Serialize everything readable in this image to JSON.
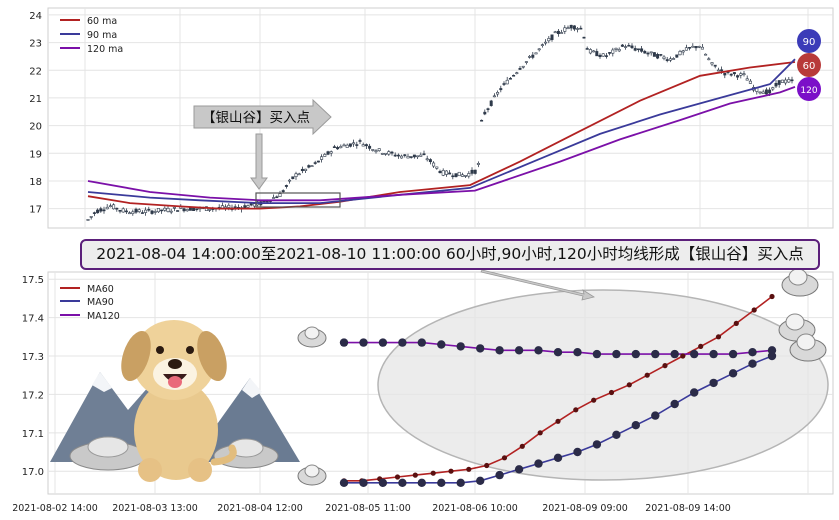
{
  "colors": {
    "ma60": "#b22222",
    "ma90": "#3a3a9a",
    "ma120": "#7b10a8",
    "candle": "#2f3a4a",
    "grid": "#e4e4e4",
    "banner_border": "#5b1f7a",
    "callout_fill": "#c8c8c8"
  },
  "top_panel": {
    "y_ticks": [
      "24",
      "23",
      "22",
      "21",
      "20",
      "19",
      "18",
      "17"
    ],
    "legend": [
      "60 ma",
      "90 ma",
      "120 ma"
    ],
    "end_badges": [
      "90",
      "60",
      "120"
    ],
    "callout": "【银山谷】买入点",
    "price_hint": {
      "min": 16.5,
      "max": 23.7,
      "last": 21.6
    }
  },
  "banner_text": "2021-08-04 14:00:00至2021-08-10 11:00:00 60小时,90小时,120小时均线形成【银山谷】买入点",
  "chart_data": {
    "type": "line",
    "title": "",
    "xlabel": "",
    "ylabel": "",
    "x_ticks": [
      "2021-08-02 14:00",
      "2021-08-03 13:00",
      "2021-08-04 12:00",
      "2021-08-05 11:00",
      "2021-08-06 10:00",
      "2021-08-09 09:00",
      "2021-08-09 14:00"
    ],
    "y_ticks": [
      "17.5",
      "17.4",
      "17.3",
      "17.2",
      "17.1",
      "17.0"
    ],
    "ylim": [
      16.975,
      17.525
    ],
    "legend": "top-left",
    "grid": true,
    "series": [
      {
        "name": "MA60",
        "values": [
          16.975,
          16.975,
          16.98,
          16.985,
          16.99,
          16.995,
          17.0,
          17.005,
          17.015,
          17.035,
          17.065,
          17.1,
          17.13,
          17.16,
          17.185,
          17.205,
          17.225,
          17.25,
          17.275,
          17.3,
          17.325,
          17.35,
          17.385,
          17.42,
          17.455
        ]
      },
      {
        "name": "MA90",
        "values": [
          16.97,
          16.97,
          16.97,
          16.97,
          16.97,
          16.97,
          16.97,
          16.975,
          16.99,
          17.005,
          17.02,
          17.035,
          17.05,
          17.07,
          17.095,
          17.12,
          17.145,
          17.175,
          17.205,
          17.23,
          17.255,
          17.28,
          17.3
        ]
      },
      {
        "name": "MA120",
        "values": [
          17.335,
          17.335,
          17.335,
          17.335,
          17.335,
          17.33,
          17.325,
          17.32,
          17.315,
          17.315,
          17.315,
          17.31,
          17.31,
          17.305,
          17.305,
          17.305,
          17.305,
          17.305,
          17.305,
          17.305,
          17.305,
          17.31,
          17.315
        ]
      }
    ]
  }
}
